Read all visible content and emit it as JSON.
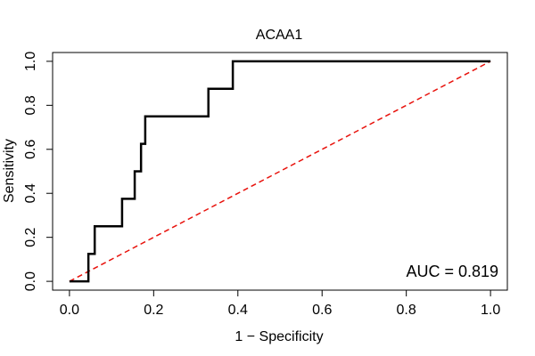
{
  "chart_data": {
    "type": "line",
    "title": "ACAA1",
    "xlabel": "1 − Specificity",
    "ylabel": "Sensitivity",
    "xlim": [
      -0.04,
      1.04
    ],
    "ylim": [
      -0.04,
      1.04
    ],
    "x_ticks": [
      0.0,
      0.2,
      0.4,
      0.6,
      0.8,
      1.0
    ],
    "y_ticks": [
      0.0,
      0.2,
      0.4,
      0.6,
      0.8,
      1.0
    ],
    "x_tick_labels": [
      "0.0",
      "0.2",
      "0.4",
      "0.6",
      "0.8",
      "1.0"
    ],
    "y_tick_labels": [
      "0.0",
      "0.2",
      "0.4",
      "0.6",
      "0.8",
      "1.0"
    ],
    "grid": false,
    "legend": "none",
    "annotation": "AUC = 0.819",
    "series": [
      {
        "style": "solid",
        "color": "#000000",
        "x": [
          0.0,
          0.045,
          0.045,
          0.06,
          0.06,
          0.07,
          0.07,
          0.125,
          0.125,
          0.155,
          0.155,
          0.17,
          0.17,
          0.18,
          0.18,
          0.33,
          0.33,
          0.388,
          0.388,
          1.0
        ],
        "y": [
          0.0,
          0.0,
          0.125,
          0.125,
          0.25,
          0.25,
          0.25,
          0.25,
          0.375,
          0.375,
          0.5,
          0.5,
          0.625,
          0.625,
          0.75,
          0.75,
          0.875,
          0.875,
          1.0,
          1.0
        ]
      },
      {
        "style": "dashed",
        "color": "#e8120c",
        "x": [
          0.0,
          1.0
        ],
        "y": [
          0.0,
          1.0
        ]
      }
    ]
  }
}
